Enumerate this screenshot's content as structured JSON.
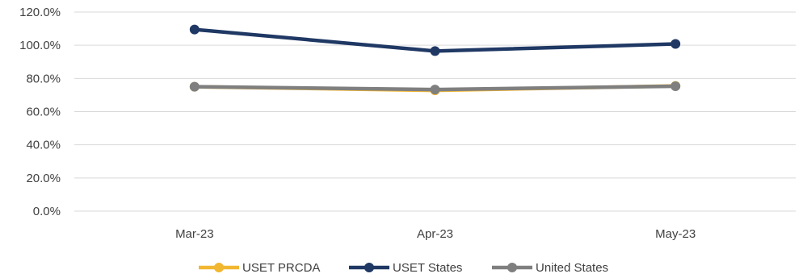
{
  "chart_data": {
    "type": "line",
    "categories": [
      "Mar-23",
      "Apr-23",
      "May-23"
    ],
    "series": [
      {
        "name": "USET PRCDA",
        "values": [
          75.0,
          72.8,
          75.5
        ],
        "color": "#F2B731"
      },
      {
        "name": "USET States",
        "values": [
          109.5,
          96.5,
          100.8
        ],
        "color": "#1F3864"
      },
      {
        "name": "United States",
        "values": [
          75.0,
          73.3,
          75.3
        ],
        "color": "#7F7F7F"
      }
    ],
    "y_ticks": [
      "0.0%",
      "20.0%",
      "40.0%",
      "60.0%",
      "80.0%",
      "100.0%",
      "120.0%"
    ],
    "ylim": [
      0,
      120
    ],
    "grid": true,
    "legend_position": "bottom"
  }
}
